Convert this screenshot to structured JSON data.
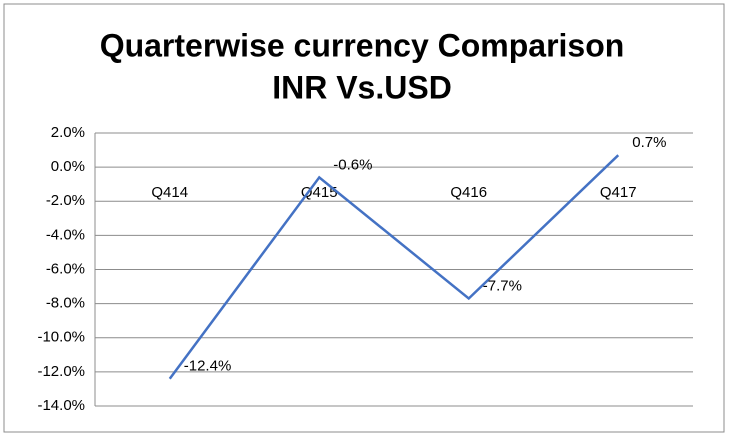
{
  "chart_data": {
    "type": "line",
    "title": [
      "Quarterwise currency Comparison",
      "INR Vs.USD"
    ],
    "categories": [
      "Q414",
      "Q415",
      "Q416",
      "Q417"
    ],
    "values": [
      -12.4,
      -0.6,
      -7.7,
      0.7
    ],
    "value_labels": [
      "-12.4%",
      "-0.6%",
      "-7.7%",
      "0.7%"
    ],
    "color": "#4472c4",
    "ylim": [
      -14,
      2
    ],
    "yticks": [
      {
        "value": 2,
        "label": "2.0%"
      },
      {
        "value": 0,
        "label": "0.0%"
      },
      {
        "value": -2,
        "label": "-2.0%"
      },
      {
        "value": -4,
        "label": "-4.0%"
      },
      {
        "value": -6,
        "label": "-6.0%"
      },
      {
        "value": -8,
        "label": "-8.0%"
      },
      {
        "value": -10,
        "label": "-10.0%"
      },
      {
        "value": -12,
        "label": "-12.0%"
      },
      {
        "value": -14,
        "label": "-14.0%"
      }
    ],
    "grid": true
  }
}
